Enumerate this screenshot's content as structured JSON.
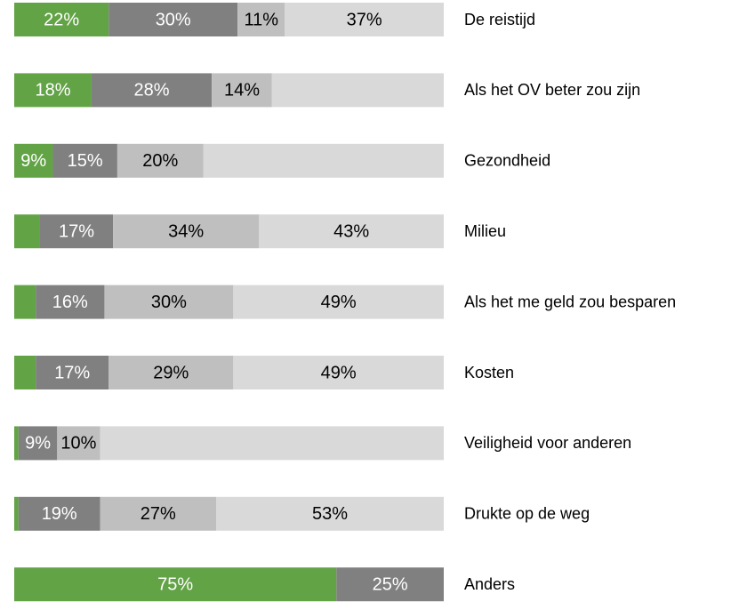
{
  "chart_data": {
    "type": "stacked-barh",
    "categories": [
      "De reistijd",
      "Als het OV beter zou zijn",
      "Gezondheid",
      "Milieu",
      "Als het me geld zou besparen",
      "Kosten",
      "Veiligheid voor anderen",
      "Drukte op de weg",
      "Anders"
    ],
    "xlim": [
      0,
      100
    ],
    "series": [
      {
        "color": "#62a346",
        "label_color": "#ffffff",
        "values": [
          22,
          18,
          9,
          6,
          5,
          5,
          1,
          1,
          75
        ],
        "value_labels": [
          "22%",
          "18%",
          "9%",
          null,
          null,
          null,
          null,
          null,
          "75%"
        ]
      },
      {
        "color": "#808080",
        "label_color": "#ffffff",
        "values": [
          30,
          28,
          15,
          17,
          16,
          17,
          9,
          19,
          25
        ],
        "value_labels": [
          "30%",
          "28%",
          "15%",
          "17%",
          "16%",
          "17%",
          "9%",
          "19%",
          "25%"
        ]
      },
      {
        "color": "#bfbfbf",
        "label_color": "#000000",
        "values": [
          11,
          14,
          20,
          34,
          30,
          29,
          10,
          27,
          null
        ],
        "value_labels": [
          "11%",
          "14%",
          "20%",
          "34%",
          "30%",
          "29%",
          "10%",
          "27%",
          null
        ]
      },
      {
        "color": "#d9d9d9",
        "label_color": "#000000",
        "values": [
          37,
          40,
          56,
          43,
          49,
          49,
          80,
          53,
          null
        ],
        "value_labels": [
          "37%",
          null,
          null,
          "43%",
          "49%",
          "49%",
          null,
          "53%",
          null
        ]
      }
    ]
  }
}
